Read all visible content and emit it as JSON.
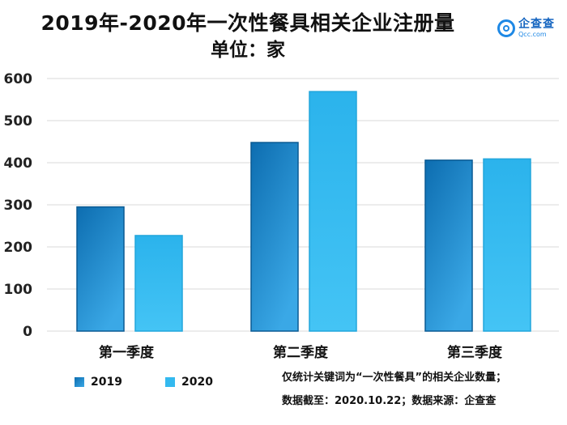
{
  "title": "2019年-2020年一次性餐具相关企业注册量",
  "subtitle": "单位：家",
  "logo": {
    "cn": "企查查",
    "en": "Qcc.com"
  },
  "colors": {
    "s2019": "#1a7fc4",
    "s2019_light": "#3aa8e6",
    "s2020": "#33b9ef",
    "s2020_light": "#44c4f5",
    "grid": "#d9d9d9"
  },
  "chart_data": {
    "type": "bar",
    "title": "2019年-2020年一次性餐具相关企业注册量",
    "subtitle": "单位：家",
    "categories": [
      "第一季度",
      "第二季度",
      "第三季度"
    ],
    "series": [
      {
        "name": "2019",
        "values": [
          295,
          448,
          406
        ]
      },
      {
        "name": "2020",
        "values": [
          227,
          569,
          409
        ]
      }
    ],
    "ylim": [
      0,
      600
    ],
    "yticks": [
      0,
      100,
      200,
      300,
      400,
      500,
      600
    ],
    "xlabel": "",
    "ylabel": "",
    "grid": true,
    "legend": "bottom-left"
  },
  "legend": {
    "s2019": "2019",
    "s2020": "2020"
  },
  "notes": {
    "line1": "仅统计关键词为“一次性餐具”的相关企业数量；",
    "line2": "数据截至：2020.10.22；数据来源：企查查"
  }
}
